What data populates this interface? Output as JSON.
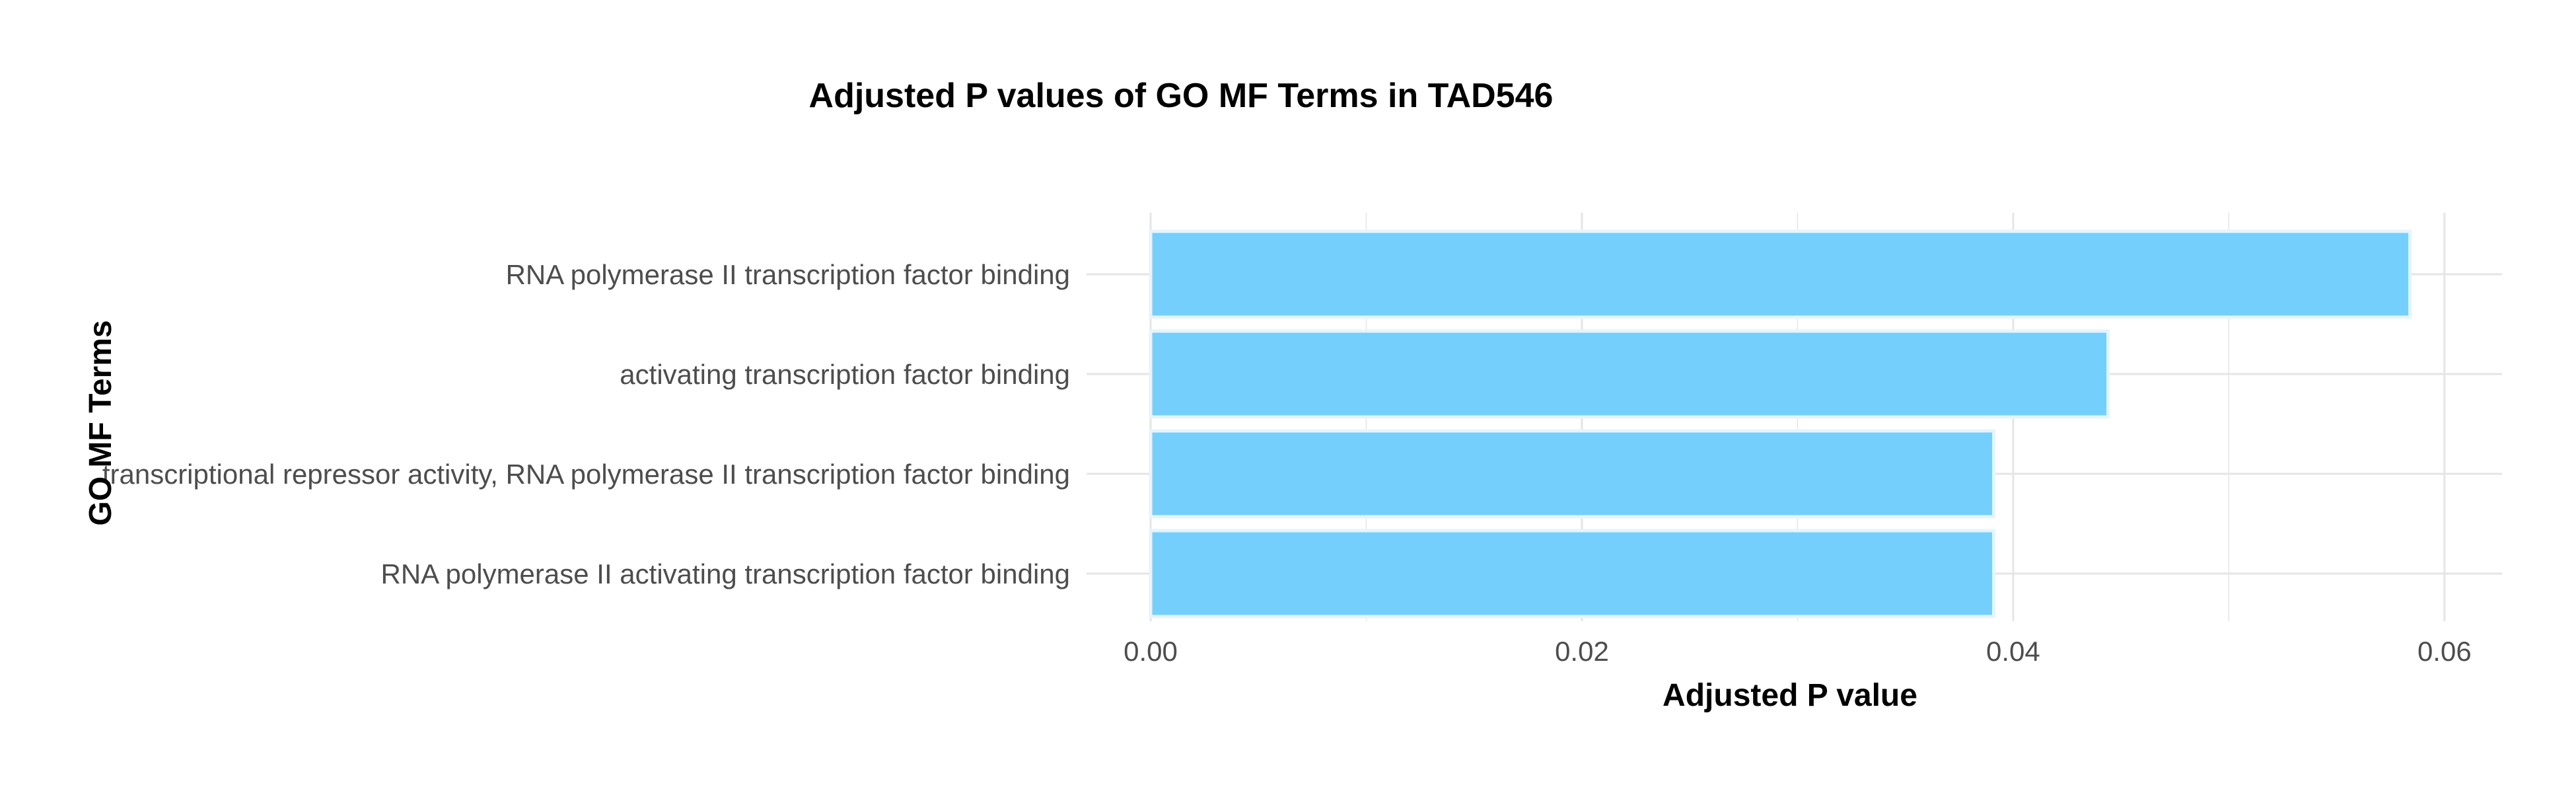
{
  "chart_data": {
    "type": "bar",
    "orientation": "horizontal",
    "title": "Adjusted P values of GO MF Terms in TAD546",
    "xlabel": "Adjusted P value",
    "ylabel": "GO MF Terms",
    "categories": [
      "RNA polymerase II transcription factor binding",
      "activating transcription factor binding",
      "transcriptional repressor activity, RNA polymerase II transcription factor binding",
      "RNA polymerase II activating transcription factor binding"
    ],
    "values": [
      0.0584,
      0.0444,
      0.0391,
      0.0391
    ],
    "xlim": [
      0,
      0.0612
    ],
    "xticks": [
      0,
      0.02,
      0.04,
      0.06
    ],
    "xtick_labels": [
      "0.00",
      "0.02",
      "0.04",
      "0.06"
    ],
    "grid": true,
    "legend": "none",
    "bar_color": "#75cffc",
    "bar_edge_color": "#e6f4fc",
    "grid_color": "#e5e5e5"
  }
}
